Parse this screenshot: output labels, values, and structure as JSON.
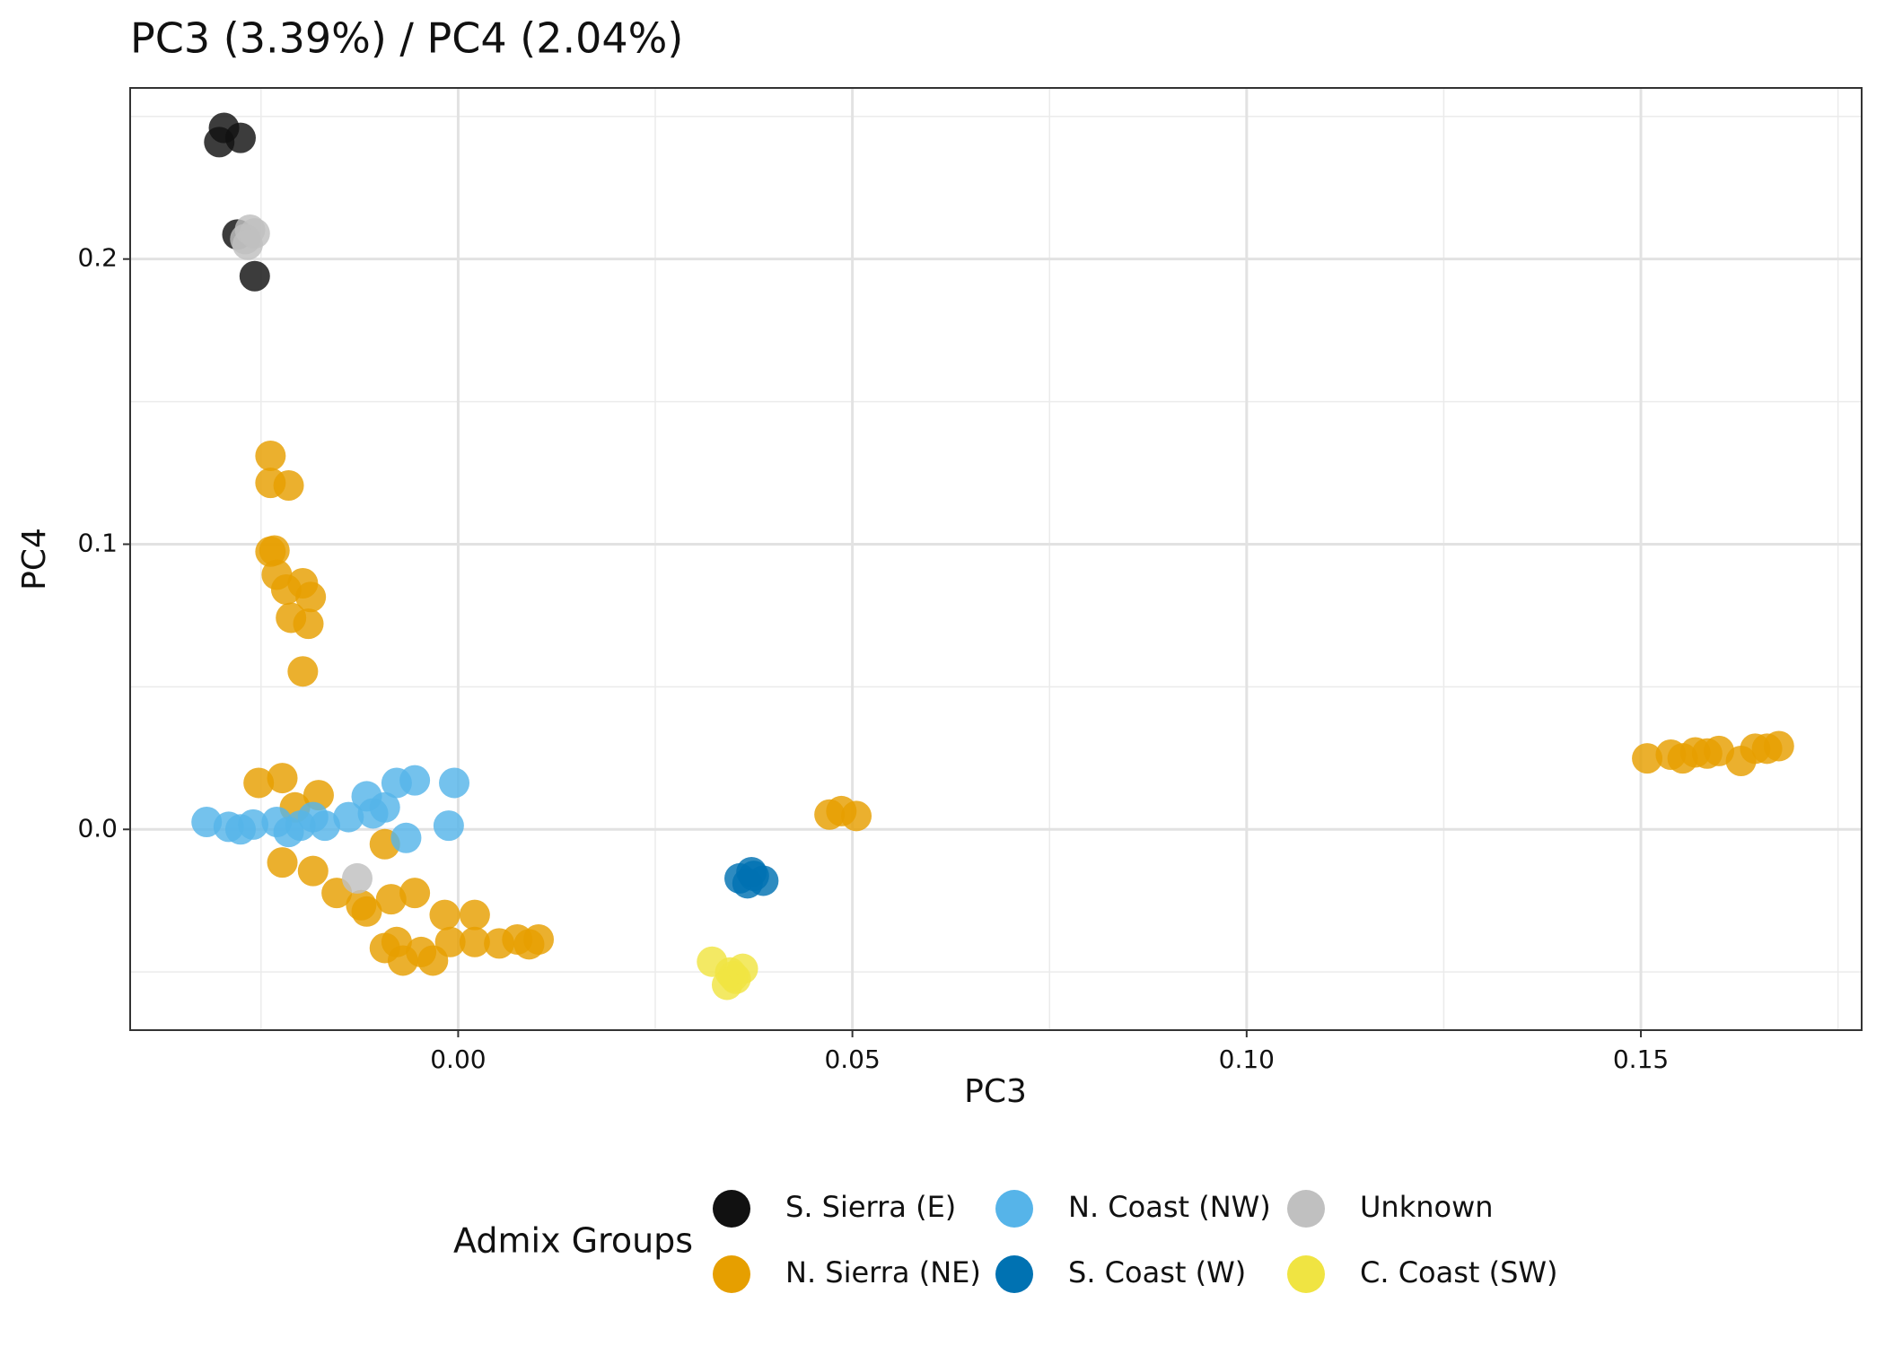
{
  "chart_data": {
    "type": "scatter",
    "title": "PC3 (3.39%) / PC4 (2.04%)",
    "x_label": "PC3",
    "y_label": "PC4",
    "xlim": [
      -0.0416,
      0.178
    ],
    "ylim": [
      -0.0704,
      0.26
    ],
    "xticks": [
      {
        "value": 0,
        "label": "0.00"
      },
      {
        "value": 0.05,
        "label": "0.05"
      },
      {
        "value": 0.1,
        "label": "0.10"
      },
      {
        "value": 0.15,
        "label": "0.15"
      }
    ],
    "yticks": [
      {
        "value": 0,
        "label": "0.0"
      },
      0.1,
      0.2
    ],
    "grid": true,
    "legend_title": "Admix Groups",
    "legend_position": "bottom",
    "series": [
      {
        "name": "S. Sierra (E)",
        "color": "#111111",
        "x": [
          -0.0297,
          -0.0303,
          -0.0276,
          -0.028,
          -0.0258
        ],
        "y": [
          0.246,
          0.241,
          0.2425,
          0.2086,
          0.194
        ]
      },
      {
        "name": "N. Sierra (NE)",
        "color": "#E69F00",
        "x": [
          -0.0238,
          -0.0238,
          -0.0215,
          -0.0238,
          -0.0233,
          -0.023,
          -0.0218,
          -0.0197,
          -0.0187,
          -0.0212,
          -0.019,
          -0.0197,
          -0.0253,
          -0.0223,
          -0.0177,
          -0.0207,
          -0.0223,
          -0.0184,
          -0.0154,
          -0.0123,
          -0.0093,
          -0.0085,
          -0.0055,
          -0.0116,
          -0.0078,
          -0.007,
          -0.0047,
          -0.0017,
          -0.001,
          0.0021,
          0.0021,
          0.0052,
          0.0075,
          0.0102,
          0.009,
          -0.0032,
          -0.0093,
          0.0471,
          0.0486,
          0.0505,
          0.1508,
          0.1538,
          0.1569,
          0.1599,
          0.1627,
          0.1645,
          0.1675,
          0.1553,
          0.1584,
          0.166
        ],
        "y": [
          0.131,
          0.1215,
          0.1206,
          0.0974,
          0.0978,
          0.0893,
          0.0841,
          0.0863,
          0.0815,
          0.0742,
          0.0721,
          0.0554,
          0.0163,
          0.018,
          0.012,
          0.0077,
          -0.0116,
          -0.0146,
          -0.0223,
          -0.0266,
          -0.0052,
          -0.0245,
          -0.0223,
          -0.0288,
          -0.0395,
          -0.046,
          -0.043,
          -0.03,
          -0.0395,
          -0.03,
          -0.0395,
          -0.04,
          -0.0386,
          -0.0386,
          -0.0403,
          -0.046,
          -0.0416,
          0.0052,
          0.0064,
          0.0047,
          0.0249,
          0.0262,
          0.027,
          0.0275,
          0.024,
          0.0283,
          0.0292,
          0.0249,
          0.0266,
          0.0283
        ]
      },
      {
        "name": "N. Coast (NW)",
        "color": "#56B4E9",
        "x": [
          -0.0319,
          -0.0291,
          -0.026,
          -0.023,
          -0.02,
          -0.0169,
          -0.0139,
          -0.0116,
          -0.0093,
          -0.0078,
          -0.0055,
          -0.0066,
          -0.0005,
          -0.0012,
          -0.0215,
          -0.0184,
          -0.0276,
          -0.0108
        ],
        "y": [
          0.0026,
          0.0009,
          0.0017,
          0.0026,
          0.0013,
          0.0013,
          0.0043,
          0.0116,
          0.0077,
          0.0163,
          0.0172,
          -0.003,
          0.0163,
          0.0013,
          -0.0009,
          0.0043,
          0.0,
          0.0056
        ]
      },
      {
        "name": "S. Coast (W)",
        "color": "#0072B2",
        "x": [
          0.0357,
          0.0372,
          0.0387,
          0.0367,
          0.0375
        ],
        "y": [
          -0.0172,
          -0.015,
          -0.018,
          -0.0189,
          -0.0163
        ]
      },
      {
        "name": "Unknown",
        "color": "#C0C0C0",
        "x": [
          -0.0264,
          -0.0258,
          -0.0267,
          -0.027,
          -0.0128
        ],
        "y": [
          0.2103,
          0.209,
          0.205,
          0.207,
          -0.0172
        ]
      },
      {
        "name": "C. Coast (SW)",
        "color": "#F0E442",
        "x": [
          0.0322,
          0.0345,
          0.0352,
          0.0341,
          0.0361,
          0.0349
        ],
        "y": [
          -0.0464,
          -0.0502,
          -0.0524,
          -0.0545,
          -0.0489,
          -0.0515
        ]
      }
    ]
  }
}
